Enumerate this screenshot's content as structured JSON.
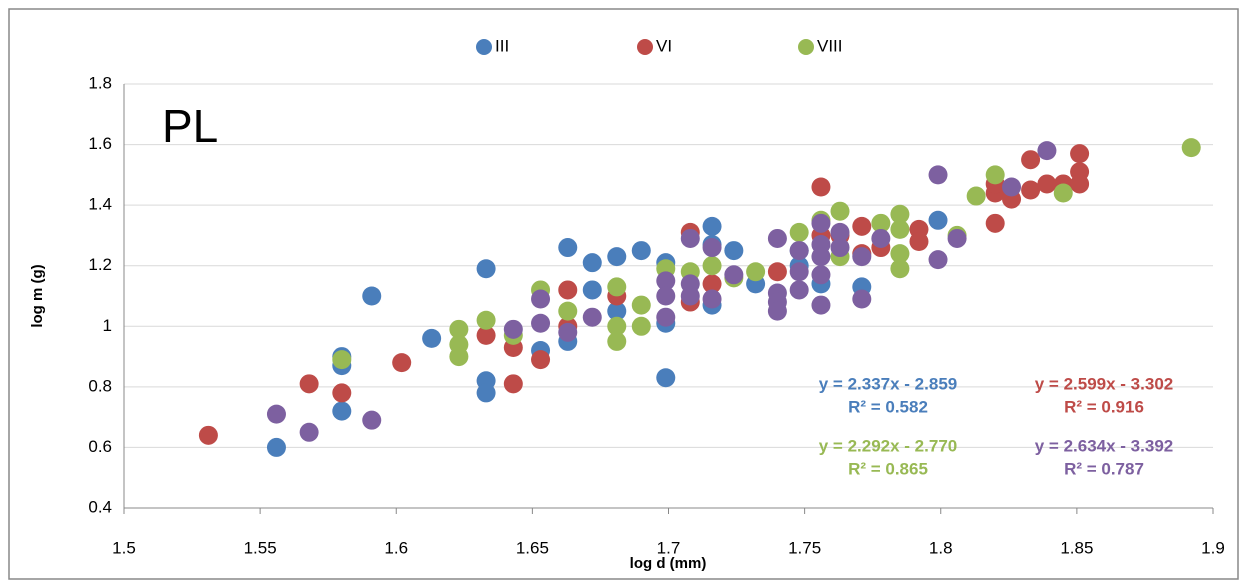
{
  "chart_data": {
    "type": "scatter",
    "title": "PL",
    "x_label": "log d (mm)",
    "y_label": "log m (g)",
    "xlim": [
      1.5,
      1.9
    ],
    "xticks": [
      1.5,
      1.55,
      1.6,
      1.65,
      1.7,
      1.75,
      1.8,
      1.85,
      1.9
    ],
    "ylim": [
      0.4,
      1.8
    ],
    "yticks": [
      0.4,
      0.6,
      0.8,
      1,
      1.2,
      1.4,
      1.6,
      1.8
    ],
    "grid": true,
    "legend": "top",
    "series": [
      {
        "name": "III",
        "color": "#4a7ebb",
        "x": [
          1.556,
          1.58,
          1.58,
          1.58,
          1.591,
          1.613,
          1.633,
          1.633,
          1.633,
          1.653,
          1.663,
          1.663,
          1.672,
          1.672,
          1.681,
          1.681,
          1.69,
          1.699,
          1.699,
          1.699,
          1.716,
          1.716,
          1.716,
          1.724,
          1.732,
          1.748,
          1.748,
          1.756,
          1.771,
          1.799
        ],
        "values": [
          0.6,
          0.87,
          0.9,
          0.72,
          1.1,
          0.96,
          1.19,
          0.82,
          0.78,
          0.92,
          1.26,
          0.95,
          1.21,
          1.12,
          1.23,
          1.05,
          1.25,
          1.21,
          1.01,
          0.83,
          1.33,
          1.27,
          1.07,
          1.25,
          1.14,
          1.25,
          1.2,
          1.14,
          1.13,
          1.35
        ]
      },
      {
        "name": "VI",
        "color": "#be4b48",
        "x": [
          1.531,
          1.568,
          1.58,
          1.602,
          1.633,
          1.643,
          1.643,
          1.653,
          1.663,
          1.663,
          1.681,
          1.708,
          1.708,
          1.716,
          1.74,
          1.756,
          1.756,
          1.763,
          1.771,
          1.771,
          1.778,
          1.792,
          1.792,
          1.82,
          1.82,
          1.82,
          1.826,
          1.833,
          1.833,
          1.839,
          1.845,
          1.851,
          1.851,
          1.851
        ],
        "values": [
          0.64,
          0.81,
          0.78,
          0.88,
          0.97,
          0.93,
          0.81,
          0.89,
          1.12,
          1.0,
          1.1,
          1.31,
          1.08,
          1.14,
          1.18,
          1.46,
          1.3,
          1.3,
          1.33,
          1.24,
          1.26,
          1.32,
          1.28,
          1.34,
          1.44,
          1.47,
          1.42,
          1.55,
          1.45,
          1.47,
          1.47,
          1.57,
          1.51,
          1.47
        ]
      },
      {
        "name": "VIII",
        "color": "#98b954",
        "x": [
          1.58,
          1.623,
          1.623,
          1.623,
          1.633,
          1.643,
          1.653,
          1.663,
          1.681,
          1.681,
          1.681,
          1.69,
          1.69,
          1.699,
          1.708,
          1.716,
          1.724,
          1.732,
          1.748,
          1.756,
          1.763,
          1.763,
          1.778,
          1.785,
          1.785,
          1.785,
          1.785,
          1.806,
          1.813,
          1.82,
          1.845,
          1.892
        ],
        "values": [
          0.89,
          0.99,
          0.94,
          0.9,
          1.02,
          0.97,
          1.12,
          1.05,
          1.13,
          1.0,
          0.95,
          1.07,
          1.0,
          1.19,
          1.18,
          1.2,
          1.16,
          1.18,
          1.31,
          1.35,
          1.38,
          1.23,
          1.34,
          1.37,
          1.32,
          1.24,
          1.19,
          1.3,
          1.43,
          1.5,
          1.44,
          1.59
        ]
      },
      {
        "color": "#7d60a0",
        "x": [
          1.556,
          1.568,
          1.591,
          1.643,
          1.653,
          1.653,
          1.663,
          1.672,
          1.699,
          1.699,
          1.699,
          1.708,
          1.708,
          1.708,
          1.716,
          1.716,
          1.724,
          1.74,
          1.74,
          1.74,
          1.74,
          1.748,
          1.748,
          1.748,
          1.756,
          1.756,
          1.756,
          1.756,
          1.756,
          1.763,
          1.763,
          1.771,
          1.771,
          1.778,
          1.799,
          1.799,
          1.806,
          1.826,
          1.839
        ],
        "values": [
          0.71,
          0.65,
          0.69,
          0.99,
          1.09,
          1.01,
          0.98,
          1.03,
          1.15,
          1.1,
          1.03,
          1.29,
          1.14,
          1.1,
          1.26,
          1.09,
          1.17,
          1.29,
          1.11,
          1.08,
          1.05,
          1.25,
          1.18,
          1.12,
          1.34,
          1.27,
          1.23,
          1.17,
          1.07,
          1.31,
          1.26,
          1.23,
          1.09,
          1.29,
          1.5,
          1.22,
          1.29,
          1.46,
          1.58
        ]
      }
    ],
    "annotations": [
      {
        "lines": [
          "y = 2.337x - 2.859",
          "R² = 0.582"
        ],
        "color": "#4a7ebb"
      },
      {
        "lines": [
          "y = 2.599x - 3.302",
          "R² = 0.916"
        ],
        "color": "#be4b48"
      },
      {
        "lines": [
          "y = 2.292x - 2.770",
          "R² = 0.865"
        ],
        "color": "#98b954"
      },
      {
        "lines": [
          "y = 2.634x - 3.392",
          "R² = 0.787"
        ],
        "color": "#7d60a0"
      }
    ]
  }
}
